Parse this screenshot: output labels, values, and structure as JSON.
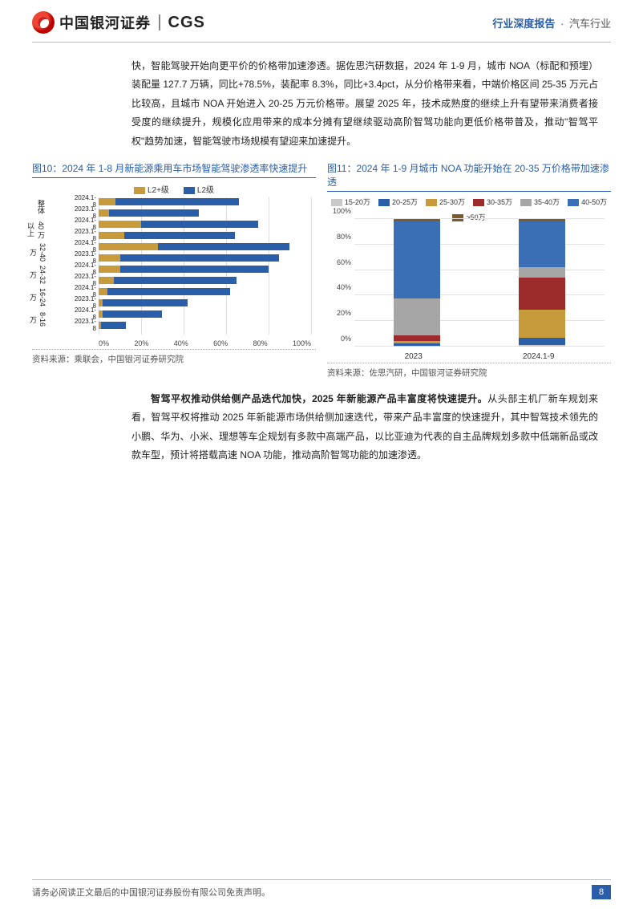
{
  "header": {
    "brand_cn": "中国银河证券",
    "brand_en": "CGS",
    "right_blue": "行业深度报告",
    "right_sep": "·",
    "right_grey": "汽车行业"
  },
  "para1": "快，智能驾驶开始向更平价的价格带加速渗透。据佐思汽研数据，2024 年 1-9 月，城市 NOA（标配和预埋）装配量 127.7 万辆，同比+78.5%，装配率 8.3%，同比+3.4pct，从分价格带来看，中端价格区间 25-35 万元占比较高，且城市 NOA 开始进入 20-25 万元价格带。展望 2025 年，技术成熟度的继续上升有望带来消费者接受度的继续提升，规模化应用带来的成本分摊有望继续驱动高阶智驾功能向更低价格带普及，推动\"智驾平权\"趋势加速，智能驾驶市场规模有望迎来加速提升。",
  "chart10": {
    "title": "图10：2024 年 1-8 月新能源乘用车市场智能驾驶渗透率快速提升",
    "legend": [
      {
        "label": "L2+级",
        "color": "#c79a3b"
      },
      {
        "label": "L2级",
        "color": "#2b5ea8"
      }
    ],
    "xticks": [
      "0%",
      "20%",
      "40%",
      "60%",
      "80%",
      "100%"
    ],
    "groups": [
      {
        "name": "整体",
        "rows": [
          {
            "label": "2024.1-8",
            "l2p": 8,
            "l2": 58
          },
          {
            "label": "2023.1-8",
            "l2p": 5,
            "l2": 42
          }
        ]
      },
      {
        "name": "40 万以上",
        "rows": [
          {
            "label": "2024.1-8",
            "l2p": 20,
            "l2": 55
          },
          {
            "label": "2023.1-8",
            "l2p": 12,
            "l2": 52
          }
        ]
      },
      {
        "name": "32-40 万",
        "rows": [
          {
            "label": "2024.1-8",
            "l2p": 28,
            "l2": 62
          },
          {
            "label": "2023.1-8",
            "l2p": 10,
            "l2": 75
          }
        ]
      },
      {
        "name": "24-32 万",
        "rows": [
          {
            "label": "2024.1-8",
            "l2p": 10,
            "l2": 70
          },
          {
            "label": "2023.1-8",
            "l2p": 7,
            "l2": 58
          }
        ]
      },
      {
        "name": "16-24 万",
        "rows": [
          {
            "label": "2024.1-8",
            "l2p": 4,
            "l2": 58
          },
          {
            "label": "2023.1-8",
            "l2p": 2,
            "l2": 40
          }
        ]
      },
      {
        "name": "8-16 万",
        "rows": [
          {
            "label": "2024.1-8",
            "l2p": 2,
            "l2": 28
          },
          {
            "label": "2023.1-8",
            "l2p": 1,
            "l2": 12
          }
        ]
      }
    ],
    "source": "资料来源：乘联会，中国银河证券研究院"
  },
  "chart11": {
    "title": "图11：2024 年 1-9 月城市 NOA 功能开始在 20-35 万价格带加速渗透",
    "legend": [
      {
        "label": "15-20万",
        "color": "#c9c9c9"
      },
      {
        "label": "20-25万",
        "color": "#2b5ea8"
      },
      {
        "label": "25-30万",
        "color": "#c79a3b"
      },
      {
        "label": "30-35万",
        "color": "#9e2b2b"
      },
      {
        "label": "35-40万",
        "color": "#a6a6a6"
      },
      {
        "label": "40-50万",
        "color": "#3a6fb5"
      },
      {
        "label": ">50万",
        "color": "#7d5a2a"
      }
    ],
    "yticks": [
      "0%",
      "20%",
      "40%",
      "60%",
      "80%",
      "100%"
    ],
    "bars": [
      {
        "label": "2023",
        "segments": [
          {
            "color": "#c9c9c9",
            "pct": 0.5
          },
          {
            "color": "#2b5ea8",
            "pct": 2
          },
          {
            "color": "#c79a3b",
            "pct": 2
          },
          {
            "color": "#9e2b2b",
            "pct": 4
          },
          {
            "color": "#a6a6a6",
            "pct": 29.5
          },
          {
            "color": "#3a6fb5",
            "pct": 60
          },
          {
            "color": "#7d5a2a",
            "pct": 2
          }
        ]
      },
      {
        "label": "2024.1-9",
        "segments": [
          {
            "color": "#c9c9c9",
            "pct": 1
          },
          {
            "color": "#2b5ea8",
            "pct": 6
          },
          {
            "color": "#c79a3b",
            "pct": 22
          },
          {
            "color": "#9e2b2b",
            "pct": 25
          },
          {
            "color": "#a6a6a6",
            "pct": 8
          },
          {
            "color": "#3a6fb5",
            "pct": 36
          },
          {
            "color": "#7d5a2a",
            "pct": 2
          }
        ]
      }
    ],
    "source": "资料来源：佐思汽研，中国银河证券研究院"
  },
  "para2_bold": "智驾平权推动供给侧产品迭代加快，2025 年新能源产品丰富度将快速提升。",
  "para2_rest": "从头部主机厂新车规划来看，智驾平权将推动 2025 年新能源市场供给侧加速迭代，带来产品丰富度的快速提升，其中智驾技术领先的小鹏、华为、小米、理想等车企规划有多款中高端产品，以比亚迪为代表的自主品牌规划多款中低端新品或改款车型，预计将搭载高速 NOA 功能，推动高阶智驾功能的加速渗透。",
  "footer": {
    "disclaimer": "请务必阅读正文最后的中国银河证券股份有限公司免责声明。",
    "page": "8"
  },
  "colors": {
    "brand_blue": "#2b5ea8",
    "gold": "#c79a3b",
    "dark_red": "#9e2b2b",
    "light_grey": "#c9c9c9",
    "mid_grey": "#a6a6a6",
    "blue2": "#3a6fb5",
    "brown": "#7d5a2a"
  }
}
